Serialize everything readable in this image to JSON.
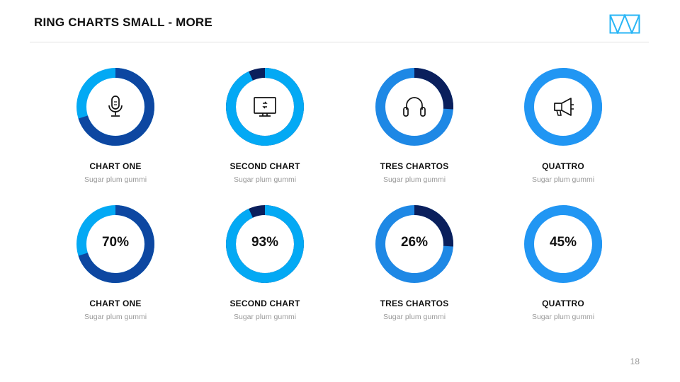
{
  "title": "RING CHARTS SMALL - MORE",
  "page_number": "18",
  "colors": {
    "blue_dark": "#0d47a1",
    "navy": "#0a1f5c",
    "cyan": "#03a9f4",
    "medium_blue": "#1e88e5",
    "bright_blue": "#2196f3",
    "logo": "#29b6f6"
  },
  "icon_row": [
    {
      "label": "CHART ONE",
      "sub": "Sugar plum gummi",
      "icon": "microphone-icon",
      "percent": 70,
      "main_color": "#0d47a1",
      "rest_color": "#03a9f4"
    },
    {
      "label": "SECOND CHART",
      "sub": "Sugar plum gummi",
      "icon": "monitor-icon",
      "percent": 93,
      "main_color": "#03a9f4",
      "rest_color": "#0a1f5c"
    },
    {
      "label": "TRES CHARTOS",
      "sub": "Sugar plum gummi",
      "icon": "headphones-icon",
      "percent": 26,
      "main_color": "#0a1f5c",
      "rest_color": "#1e88e5"
    },
    {
      "label": "QUATTRO",
      "sub": "Sugar plum gummi",
      "icon": "megaphone-icon",
      "percent": 45,
      "main_color": "#2196f3",
      "rest_color": "#2196f3"
    }
  ],
  "chart_data": {
    "type": "pie",
    "categories": [
      "CHART ONE",
      "SECOND CHART",
      "TRES CHARTOS",
      "QUATTRO"
    ],
    "values": [
      70,
      93,
      26,
      45
    ],
    "value_labels": [
      "70%",
      "93%",
      "26%",
      "45%"
    ],
    "subtitles": [
      "Sugar plum gummi",
      "Sugar plum gummi",
      "Sugar plum gummi",
      "Sugar plum gummi"
    ],
    "unit": "%",
    "ylim": [
      0,
      100
    ]
  }
}
